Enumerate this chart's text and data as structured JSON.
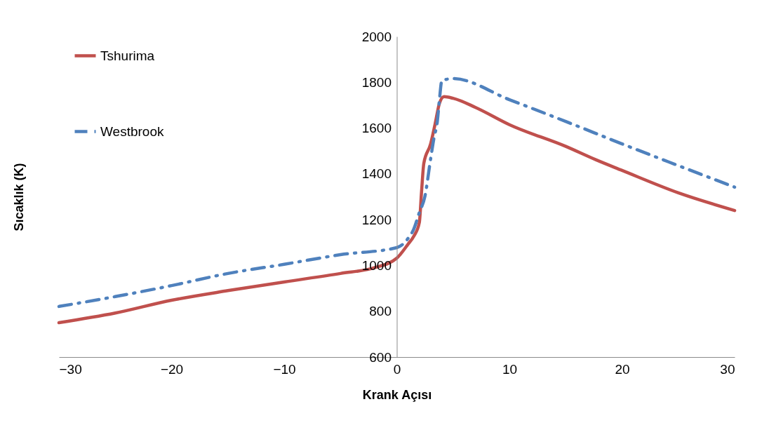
{
  "chart_data": {
    "type": "line",
    "xlabel": "Krank Açısı",
    "ylabel": "Sıcaklık (K)",
    "xlim": [
      -30,
      30
    ],
    "xticks": [
      -30,
      -20,
      -10,
      0,
      10,
      20,
      30
    ],
    "ylim": [
      600,
      2000
    ],
    "yticks": [
      600,
      800,
      1000,
      1200,
      1400,
      1600,
      1800,
      2000
    ],
    "grid": false,
    "legend": "top left",
    "marker": "none",
    "series": [
      {
        "name": "Tshurima",
        "color": "#c0504d",
        "line_style": "solid",
        "x": [
          -30,
          -25,
          -20,
          -15,
          -10,
          -5,
          -2,
          0,
          1,
          1.5,
          2,
          2.2,
          2.4,
          3,
          3.4,
          3.8,
          4.2,
          5,
          7,
          10,
          15,
          17.7,
          20,
          25,
          30
        ],
        "values": [
          750,
          792,
          848,
          890,
          928,
          965,
          990,
          1032,
          1093,
          1127,
          1187,
          1323,
          1446,
          1530,
          1617,
          1710,
          1737,
          1730,
          1690,
          1615,
          1520,
          1461,
          1415,
          1317,
          1240
        ]
      },
      {
        "name": "Westbrook",
        "color": "#4f81bd",
        "line_style": "dashdot",
        "x": [
          -30,
          -25,
          -20,
          -15,
          -10,
          -5,
          0,
          1,
          1.5,
          2,
          2.5,
          3,
          3.3,
          3.6,
          3.8,
          4,
          5,
          10,
          15,
          20,
          25,
          30
        ],
        "values": [
          821,
          864,
          912,
          965,
          1005,
          1047,
          1078,
          1118,
          1158,
          1231,
          1302,
          1464,
          1556,
          1629,
          1730,
          1807,
          1816,
          1724,
          1629,
          1531,
          1436,
          1342
        ]
      }
    ]
  }
}
